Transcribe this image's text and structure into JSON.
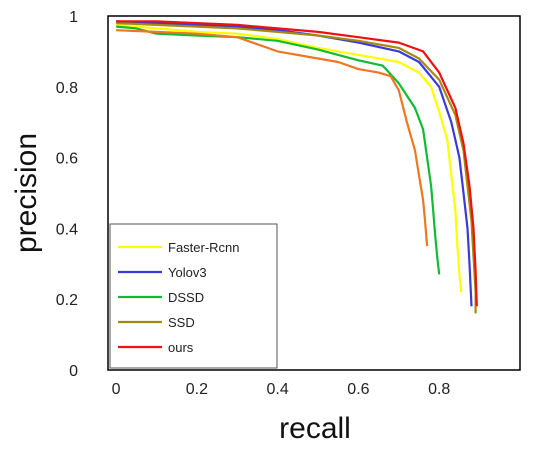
{
  "chart_data": {
    "type": "line",
    "title": "",
    "xlabel": "recall",
    "ylabel": "precision",
    "xlim": [
      -0.02,
      1.0
    ],
    "ylim": [
      0,
      1.0
    ],
    "x_ticks": [
      "0",
      "0.2",
      "0.4",
      "0.6",
      "0.8"
    ],
    "y_ticks": [
      "0",
      "0.2",
      "0.4",
      "0.6",
      "0.8",
      "1"
    ],
    "x_tick_values": [
      0,
      0.2,
      0.4,
      0.6,
      0.8
    ],
    "y_tick_values": [
      0,
      0.2,
      0.4,
      0.6,
      0.8,
      1.0
    ],
    "grid": false,
    "legend_position": "bottom-left",
    "series": [
      {
        "name": "Faster-Rcnn",
        "color": "#ffff00",
        "x": [
          0.0,
          0.05,
          0.1,
          0.2,
          0.3,
          0.4,
          0.5,
          0.6,
          0.7,
          0.75,
          0.78,
          0.8,
          0.82,
          0.83,
          0.84,
          0.845,
          0.85,
          0.855
        ],
        "y": [
          0.975,
          0.97,
          0.965,
          0.955,
          0.95,
          0.935,
          0.91,
          0.89,
          0.87,
          0.84,
          0.8,
          0.73,
          0.65,
          0.55,
          0.45,
          0.35,
          0.27,
          0.22
        ]
      },
      {
        "name": "Yolov3",
        "color": "#3a3ad8",
        "x": [
          0.0,
          0.1,
          0.2,
          0.3,
          0.4,
          0.5,
          0.6,
          0.7,
          0.75,
          0.8,
          0.83,
          0.85,
          0.86,
          0.87,
          0.875,
          0.88
        ],
        "y": [
          0.985,
          0.98,
          0.975,
          0.97,
          0.96,
          0.945,
          0.925,
          0.9,
          0.87,
          0.8,
          0.7,
          0.6,
          0.5,
          0.4,
          0.3,
          0.18
        ]
      },
      {
        "name": "DSSD",
        "color": "#11bb33",
        "x": [
          0.0,
          0.05,
          0.1,
          0.2,
          0.3,
          0.4,
          0.5,
          0.6,
          0.66,
          0.7,
          0.74,
          0.76,
          0.77,
          0.78,
          0.785,
          0.79,
          0.795,
          0.8
        ],
        "y": [
          0.97,
          0.965,
          0.95,
          0.945,
          0.94,
          0.93,
          0.905,
          0.875,
          0.86,
          0.81,
          0.74,
          0.68,
          0.6,
          0.52,
          0.45,
          0.38,
          0.32,
          0.27
        ]
      },
      {
        "name": "SSD",
        "color": "#a58a10",
        "x": [
          0.0,
          0.1,
          0.2,
          0.3,
          0.4,
          0.5,
          0.6,
          0.7,
          0.75,
          0.8,
          0.84,
          0.86,
          0.87,
          0.88,
          0.885,
          0.89,
          0.89
        ],
        "y": [
          0.98,
          0.975,
          0.97,
          0.965,
          0.955,
          0.945,
          0.93,
          0.91,
          0.88,
          0.82,
          0.72,
          0.62,
          0.52,
          0.42,
          0.32,
          0.22,
          0.16
        ]
      },
      {
        "name": "ours",
        "color": "#ee1111",
        "x": [
          0.0,
          0.1,
          0.2,
          0.3,
          0.4,
          0.5,
          0.6,
          0.7,
          0.76,
          0.8,
          0.84,
          0.86,
          0.875,
          0.885,
          0.89,
          0.893
        ],
        "y": [
          0.985,
          0.985,
          0.98,
          0.975,
          0.965,
          0.955,
          0.94,
          0.925,
          0.9,
          0.84,
          0.74,
          0.64,
          0.52,
          0.4,
          0.28,
          0.18
        ]
      },
      {
        "name": "",
        "color": "#ee7722",
        "x": [
          0.0,
          0.1,
          0.2,
          0.3,
          0.4,
          0.5,
          0.55,
          0.6,
          0.65,
          0.68,
          0.7,
          0.72,
          0.74,
          0.75,
          0.76,
          0.765,
          0.77
        ],
        "y": [
          0.96,
          0.955,
          0.95,
          0.94,
          0.9,
          0.88,
          0.87,
          0.85,
          0.84,
          0.83,
          0.79,
          0.7,
          0.62,
          0.55,
          0.48,
          0.42,
          0.35
        ]
      }
    ]
  }
}
